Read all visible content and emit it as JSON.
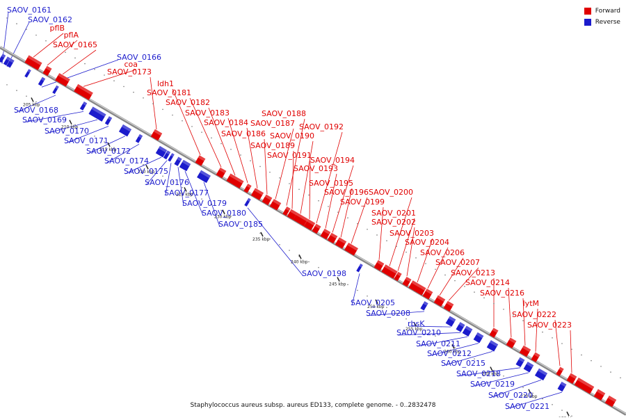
{
  "legend": {
    "forward_label": "Forward",
    "reverse_label": "Reverse",
    "forward_color": "#e00000",
    "reverse_color": "#1b1bcc"
  },
  "caption": "Staphylococcus aureus subsp. aureus ED133, complete genome. - 0..2832478",
  "ticks": [
    "205 kbp",
    "210 kbp",
    "215 kbp",
    "220 kbp",
    "225 kbp",
    "230 kbp",
    "235 kbp",
    "240 kbp",
    "245 kbp",
    "250 kbp",
    "255 kbp",
    "260 kbp",
    "265 kbp",
    "270 kbp",
    "275 kbp"
  ],
  "forward_genes": [
    "pflB",
    "pflA",
    "SAOV_0165",
    "coa",
    "SAOV_0173",
    "ldh1",
    "SAOV_0181",
    "SAOV_0182",
    "SAOV_0183",
    "SAOV_0184",
    "SAOV_0186",
    "SAOV_0187",
    "SAOV_0188",
    "SAOV_0189",
    "SAOV_0190",
    "SAOV_0191",
    "SAOV_0192",
    "SAOV_0193",
    "SAOV_0194",
    "SAOV_0195",
    "SAOV_0196",
    "SAOV_0199",
    "SAOV_0200",
    "SAOV_0201",
    "SAOV_0202",
    "SAOV_0203",
    "SAOV_0204",
    "SAOV_0206",
    "SAOV_0207",
    "SAOV_0213",
    "SAOV_0214",
    "SAOV_0216",
    "lytM",
    "SAOV_0222",
    "SAOV_0223"
  ],
  "reverse_genes": [
    "SAOV_0161",
    "SAOV_0162",
    "SAOV_0166",
    "SAOV_0168",
    "SAOV_0169",
    "SAOV_0170",
    "SAOV_0171",
    "SAOV_0172",
    "SAOV_0174",
    "SAOV_0175",
    "SAOV_0176",
    "SAOV_0177",
    "SAOV_0179",
    "SAOV_0180",
    "SAOV_0185",
    "SAOV_0198",
    "SAOV_0205",
    "SAOV_0208",
    "rbsK",
    "SAOV_0210",
    "SAOV_0211",
    "SAOV_0212",
    "SAOV_0215",
    "SAOV_0218",
    "SAOV_0219",
    "SAOV_0220",
    "SAOV_0221"
  ]
}
